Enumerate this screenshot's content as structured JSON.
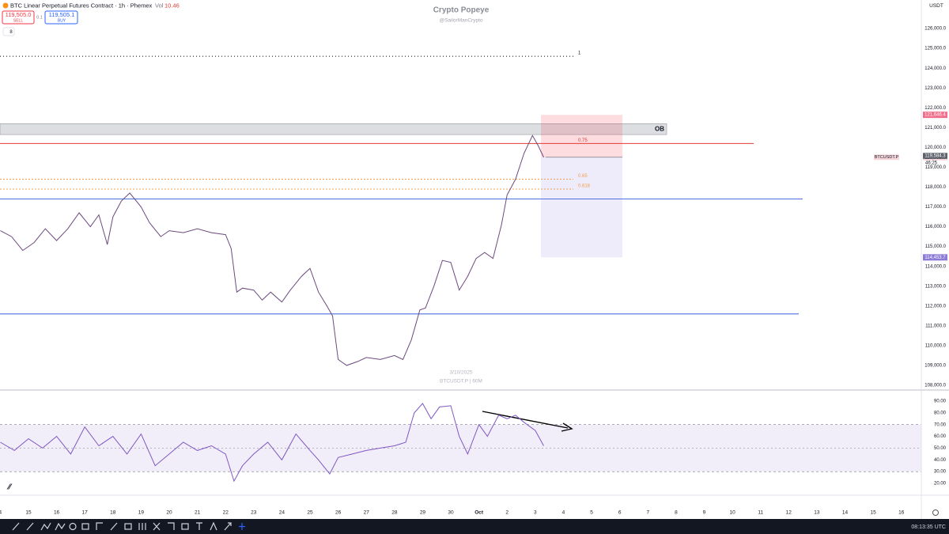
{
  "header": {
    "symbol": "BTC Linear Perpetual Futures Contract · 1h · Phemex",
    "vol_label": "Vol",
    "vol": 10.46,
    "sell_price": "119,505.0",
    "sell": "SELL",
    "spread": 0.1,
    "buy_price": "119,505.1",
    "buy": "BUY",
    "indicators": 8
  },
  "watermark": {
    "title": "Crypto Popeye",
    "handle": "@SailorManCrypto",
    "date": "3/10/2025",
    "symbol": "BTCUSDT.P | 60M"
  },
  "currency": "USDT",
  "toolbar_time": "08:13:35 UTC",
  "chart_data": [
    {
      "type": "line",
      "color": "#6c4a7e",
      "x": [
        14.0,
        14.4,
        14.8,
        15.2,
        15.6,
        16.0,
        16.4,
        16.8,
        17.2,
        17.5,
        17.8,
        18.0,
        18.3,
        18.6,
        19.0,
        19.3,
        19.7,
        20.0,
        20.5,
        21.0,
        21.5,
        22.0,
        22.2,
        22.4,
        22.6,
        23.0,
        23.3,
        23.6,
        24.0,
        24.3,
        24.7,
        25.0,
        25.3,
        25.6,
        25.8,
        26.0,
        26.3,
        26.7,
        27.0,
        27.5,
        28.0,
        28.3,
        28.6,
        28.9,
        29.1,
        29.4,
        29.7,
        30.0,
        30.3,
        30.6,
        30.9,
        31.2,
        31.5,
        31.8,
        32.0,
        32.3,
        32.6,
        32.9,
        33.1,
        33.3
      ],
      "values": [
        115800,
        115500,
        114800,
        115200,
        115900,
        115300,
        115900,
        116700,
        116000,
        116600,
        115100,
        116500,
        117300,
        117700,
        117000,
        116200,
        115500,
        115800,
        115700,
        115900,
        115700,
        115600,
        114900,
        112700,
        112900,
        112800,
        112300,
        112700,
        112200,
        112800,
        113500,
        113900,
        112700,
        112000,
        111500,
        109300,
        109000,
        109200,
        109400,
        109300,
        109500,
        109300,
        110300,
        111800,
        111900,
        113000,
        114300,
        114200,
        112800,
        113500,
        114400,
        114700,
        114400,
        116100,
        117600,
        118400,
        119700,
        120600,
        120100,
        119500
      ],
      "xlim": [
        13.99,
        46.71
      ],
      "ylim": [
        107760,
        127440
      ],
      "yticks": [
        {
          "value": 108000,
          "label": "108,000.0"
        },
        {
          "value": 109000,
          "label": "109,000.0"
        },
        {
          "value": 110000,
          "label": "110,000.0"
        },
        {
          "value": 111000,
          "label": "111,000.0"
        },
        {
          "value": 112000,
          "label": "112,000.0"
        },
        {
          "value": 113000,
          "label": "113,000.0"
        },
        {
          "value": 114000,
          "label": "114,000.0"
        },
        {
          "value": 115000,
          "label": "115,000.0"
        },
        {
          "value": 116000,
          "label": "116,000.0"
        },
        {
          "value": 117000,
          "label": "117,000.0"
        },
        {
          "value": 118000,
          "label": "118,000.0"
        },
        {
          "value": 119000,
          "label": "119,000.0"
        },
        {
          "value": 120000,
          "label": "120,000.0"
        },
        {
          "value": 121000,
          "label": "121,000.0"
        },
        {
          "value": 122000,
          "label": "122,000.0"
        },
        {
          "value": 123000,
          "label": "123,000.0"
        },
        {
          "value": 124000,
          "label": "124,000.0"
        },
        {
          "value": 125000,
          "label": "125,000.0"
        },
        {
          "value": 126000,
          "label": "126,000.0"
        }
      ],
      "xticks": [
        {
          "value": 14,
          "label": "4"
        },
        15,
        16,
        17,
        18,
        19,
        20,
        21,
        22,
        23,
        24,
        25,
        26,
        27,
        28,
        29,
        30,
        {
          "value": 31,
          "label": "Oct"
        },
        {
          "value": 32,
          "label": "2"
        },
        {
          "value": 33,
          "label": "3"
        },
        {
          "value": 34,
          "label": "4"
        },
        {
          "value": 35,
          "label": "5"
        },
        {
          "value": 36,
          "label": "6"
        },
        {
          "value": 37,
          "label": "7"
        },
        {
          "value": 38,
          "label": "8"
        },
        {
          "value": 39,
          "label": "9"
        },
        {
          "value": 40,
          "label": "10"
        },
        {
          "value": 41,
          "label": "11"
        },
        {
          "value": 42,
          "label": "12"
        },
        {
          "value": 43,
          "label": "13"
        },
        {
          "value": 44,
          "label": "14"
        },
        {
          "value": 45,
          "label": "15"
        },
        {
          "value": 46,
          "label": "16"
        }
      ],
      "levels": [
        {
          "value": 124600,
          "color": "#000000",
          "dash": "1,3",
          "label": "1"
        },
        {
          "value": 120200,
          "color": "#e53935",
          "label": "0.75"
        },
        {
          "value": 118400,
          "color": "#f0a050",
          "dash": "2,2",
          "label": "0.65"
        },
        {
          "value": 117900,
          "color": "#f0a050",
          "dash": "2,2",
          "label": "0.618"
        },
        {
          "value": 117400,
          "color": "#4f6fe0"
        },
        {
          "value": 111600,
          "color": "#4f6fe0"
        }
      ],
      "zone": {
        "label": "OB",
        "top": 121200,
        "bottom": 120650
      },
      "position": {
        "stop": {
          "value": 121646.4,
          "label": "121,646.4"
        },
        "entry": {
          "value": 119505.0,
          "label": "119,505.0"
        },
        "target": {
          "value": 114453.7,
          "label": "114,453.7"
        }
      },
      "last_price": {
        "value": 119584.3,
        "label": "119,584.3"
      },
      "countdown": "46:25",
      "symbol_tag": "BTCUSDT.P"
    },
    {
      "type": "line",
      "color": "#7e57c2",
      "x": [
        14.0,
        14.5,
        15.0,
        15.5,
        16.0,
        16.5,
        17.0,
        17.5,
        18.0,
        18.5,
        19.0,
        19.5,
        20.0,
        20.5,
        21.0,
        21.5,
        22.0,
        22.3,
        22.6,
        23.0,
        23.5,
        24.0,
        24.5,
        25.0,
        25.3,
        25.7,
        26.0,
        26.5,
        27.0,
        27.5,
        28.0,
        28.4,
        28.7,
        29.0,
        29.3,
        29.6,
        30.0,
        30.3,
        30.6,
        31.0,
        31.3,
        31.7,
        32.0,
        32.3,
        32.6,
        33.0,
        33.3
      ],
      "values": [
        55,
        48,
        58,
        50,
        60,
        45,
        68,
        52,
        60,
        45,
        62,
        35,
        45,
        55,
        48,
        52,
        45,
        22,
        35,
        45,
        55,
        40,
        62,
        48,
        40,
        28,
        42,
        45,
        48,
        50,
        52,
        55,
        80,
        88,
        75,
        85,
        86,
        60,
        45,
        70,
        60,
        78,
        75,
        78,
        72,
        65,
        52
      ],
      "xlim": [
        13.99,
        46.71
      ],
      "ylim": [
        10.6,
        98.75
      ],
      "yticks": [
        {
          "value": 20,
          "label": "20.00"
        },
        {
          "value": 30,
          "label": "30.00"
        },
        {
          "value": 40,
          "label": "40.00"
        },
        {
          "value": 50,
          "label": "50.00"
        },
        {
          "value": 60,
          "label": "60.00"
        },
        {
          "value": 70,
          "label": "70.00"
        },
        {
          "value": 80,
          "label": "80.00"
        },
        {
          "value": 90,
          "label": "90.00"
        }
      ],
      "band": [
        30,
        70
      ],
      "midline": 50
    }
  ]
}
